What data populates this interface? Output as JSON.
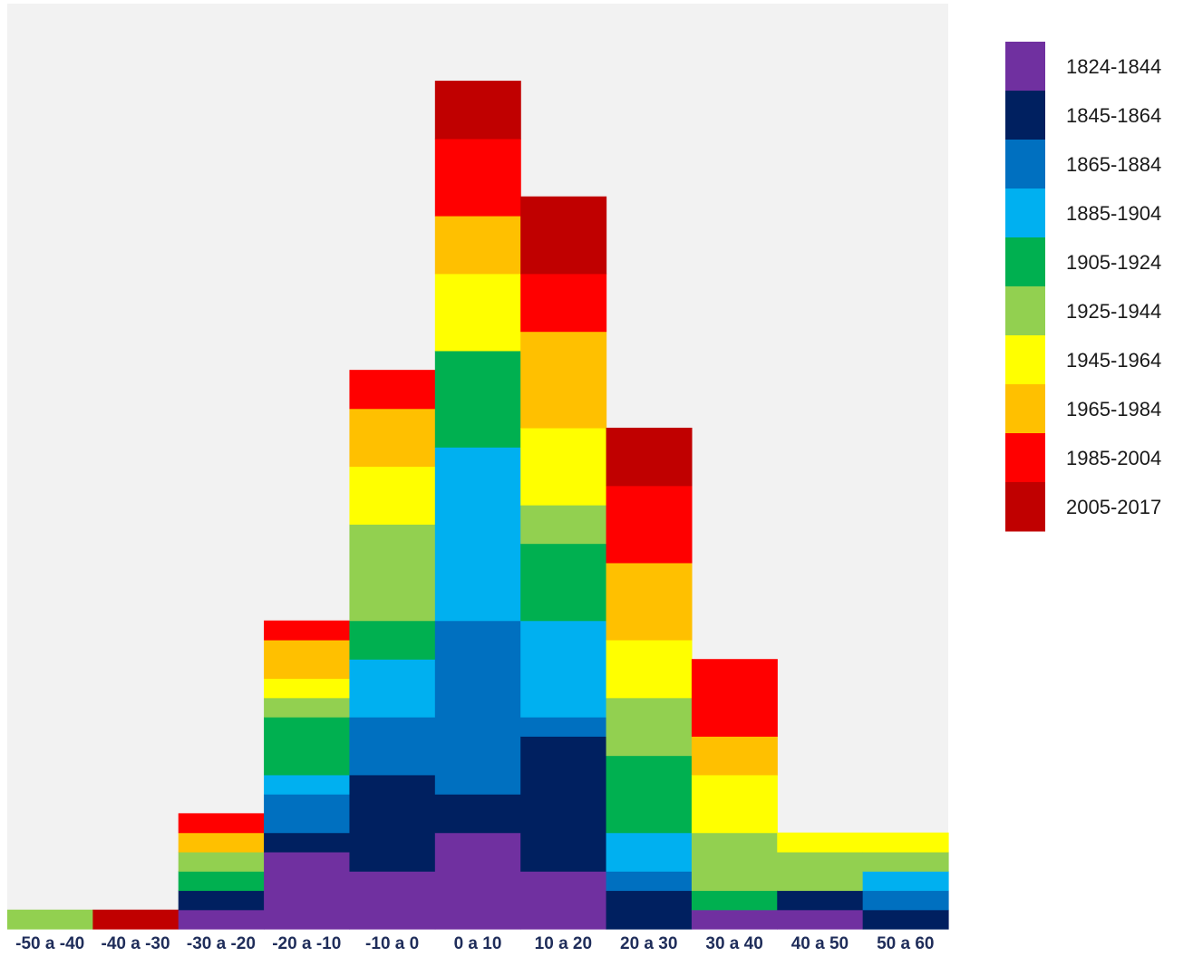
{
  "chart_data": {
    "type": "bar",
    "stacked": true,
    "categories": [
      "-50 a -40",
      "-40 a -30",
      "-30 a -20",
      "-20 a -10",
      "-10 a 0",
      "0 a 10",
      "10 a 20",
      "20 a 30",
      "30 a 40",
      "40 a 50",
      "50 a 60"
    ],
    "series": [
      {
        "name": "1824-1844",
        "color": "#7030A0",
        "values": [
          0,
          0,
          1,
          4,
          3,
          5,
          3,
          0,
          1,
          1,
          0
        ]
      },
      {
        "name": "1845-1864",
        "color": "#002060",
        "values": [
          0,
          0,
          1,
          1,
          5,
          2,
          7,
          2,
          0,
          1,
          1
        ]
      },
      {
        "name": "1865-1884",
        "color": "#0070C0",
        "values": [
          0,
          0,
          0,
          2,
          3,
          9,
          1,
          1,
          0,
          0,
          1
        ]
      },
      {
        "name": "1885-1904",
        "color": "#00B0F0",
        "values": [
          0,
          0,
          0,
          1,
          3,
          9,
          5,
          2,
          0,
          0,
          1
        ]
      },
      {
        "name": "1905-1924",
        "color": "#00B050",
        "values": [
          0,
          0,
          1,
          3,
          2,
          5,
          4,
          4,
          1,
          0,
          0
        ]
      },
      {
        "name": "1925-1944",
        "color": "#92D050",
        "values": [
          1,
          0,
          1,
          1,
          5,
          0,
          2,
          3,
          3,
          2,
          1
        ]
      },
      {
        "name": "1945-1964",
        "color": "#FFFF00",
        "values": [
          0,
          0,
          0,
          1,
          3,
          4,
          4,
          3,
          3,
          1,
          1
        ]
      },
      {
        "name": "1965-1984",
        "color": "#FFC000",
        "values": [
          0,
          0,
          1,
          2,
          3,
          3,
          5,
          4,
          2,
          0,
          0
        ]
      },
      {
        "name": "1985-2004",
        "color": "#FF0000",
        "values": [
          0,
          0,
          1,
          1,
          2,
          4,
          3,
          4,
          4,
          0,
          0
        ]
      },
      {
        "name": "2005-2017",
        "color": "#C00000",
        "values": [
          0,
          1,
          0,
          0,
          0,
          3,
          4,
          3,
          0,
          0,
          0
        ]
      }
    ],
    "ylim": [
      0,
      48
    ],
    "title": "",
    "xlabel": "",
    "ylabel": "",
    "grid": false,
    "legend_position": "right",
    "plot_background": "#F2F2F2"
  }
}
